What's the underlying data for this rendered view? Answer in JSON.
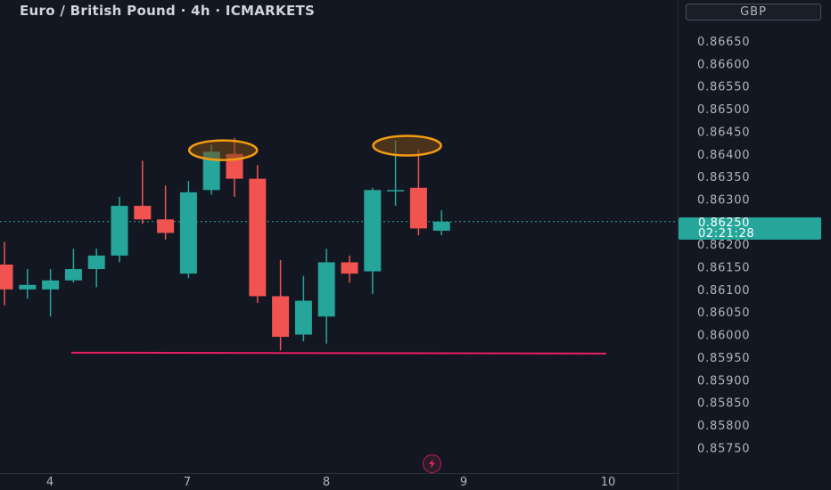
{
  "header": {
    "title": "Euro / British Pound · 4h · ICMARKETS",
    "currency": "GBP"
  },
  "last_price": {
    "value": "0.86250",
    "countdown": "02:21:28"
  },
  "colors": {
    "background": "#131722",
    "up": "#26a69a",
    "down": "#f05350",
    "support_line": "#e91e63",
    "highlight": "#f39c12",
    "axis_text": "#b2b5be"
  },
  "chart_data": {
    "type": "candlestick",
    "y_ticks": [
      "0.86650",
      "0.86600",
      "0.86550",
      "0.86500",
      "0.86450",
      "0.86400",
      "0.86350",
      "0.86300",
      "0.86250",
      "0.86200",
      "0.86150",
      "0.86100",
      "0.86050",
      "0.86000",
      "0.85950",
      "0.85900",
      "0.85850",
      "0.85800",
      "0.85750"
    ],
    "x_ticks": [
      "4",
      "7",
      "8",
      "9",
      "10"
    ],
    "ylim": [
      0.8572,
      0.8669
    ],
    "last_price": 0.8625,
    "candles": [
      {
        "o": 0.86155,
        "h": 0.86205,
        "l": 0.86065,
        "c": 0.861
      },
      {
        "o": 0.861,
        "h": 0.86145,
        "l": 0.8608,
        "c": 0.8611
      },
      {
        "o": 0.861,
        "h": 0.86145,
        "l": 0.8604,
        "c": 0.8612
      },
      {
        "o": 0.8612,
        "h": 0.8619,
        "l": 0.86115,
        "c": 0.86145
      },
      {
        "o": 0.86145,
        "h": 0.8619,
        "l": 0.86105,
        "c": 0.86175
      },
      {
        "o": 0.86175,
        "h": 0.86305,
        "l": 0.8616,
        "c": 0.86285
      },
      {
        "o": 0.86285,
        "h": 0.86385,
        "l": 0.86245,
        "c": 0.86255
      },
      {
        "o": 0.86255,
        "h": 0.8633,
        "l": 0.8621,
        "c": 0.86225
      },
      {
        "o": 0.86135,
        "h": 0.8634,
        "l": 0.86125,
        "c": 0.86315
      },
      {
        "o": 0.8632,
        "h": 0.8642,
        "l": 0.8631,
        "c": 0.86405
      },
      {
        "o": 0.864,
        "h": 0.86435,
        "l": 0.86305,
        "c": 0.86345
      },
      {
        "o": 0.86345,
        "h": 0.86375,
        "l": 0.8607,
        "c": 0.86085
      },
      {
        "o": 0.86085,
        "h": 0.86165,
        "l": 0.85965,
        "c": 0.85995
      },
      {
        "o": 0.86,
        "h": 0.8613,
        "l": 0.85985,
        "c": 0.86075
      },
      {
        "o": 0.8604,
        "h": 0.8619,
        "l": 0.8598,
        "c": 0.8616
      },
      {
        "o": 0.8616,
        "h": 0.86175,
        "l": 0.86115,
        "c": 0.86135
      },
      {
        "o": 0.8614,
        "h": 0.86325,
        "l": 0.8609,
        "c": 0.8632
      },
      {
        "o": 0.8632,
        "h": 0.8643,
        "l": 0.86285,
        "c": 0.8632
      },
      {
        "o": 0.86325,
        "h": 0.8641,
        "l": 0.8622,
        "c": 0.86235
      },
      {
        "o": 0.8623,
        "h": 0.86275,
        "l": 0.8622,
        "c": 0.8625
      }
    ],
    "support_level": 0.8596,
    "highlighted_candles": [
      9,
      17
    ]
  }
}
